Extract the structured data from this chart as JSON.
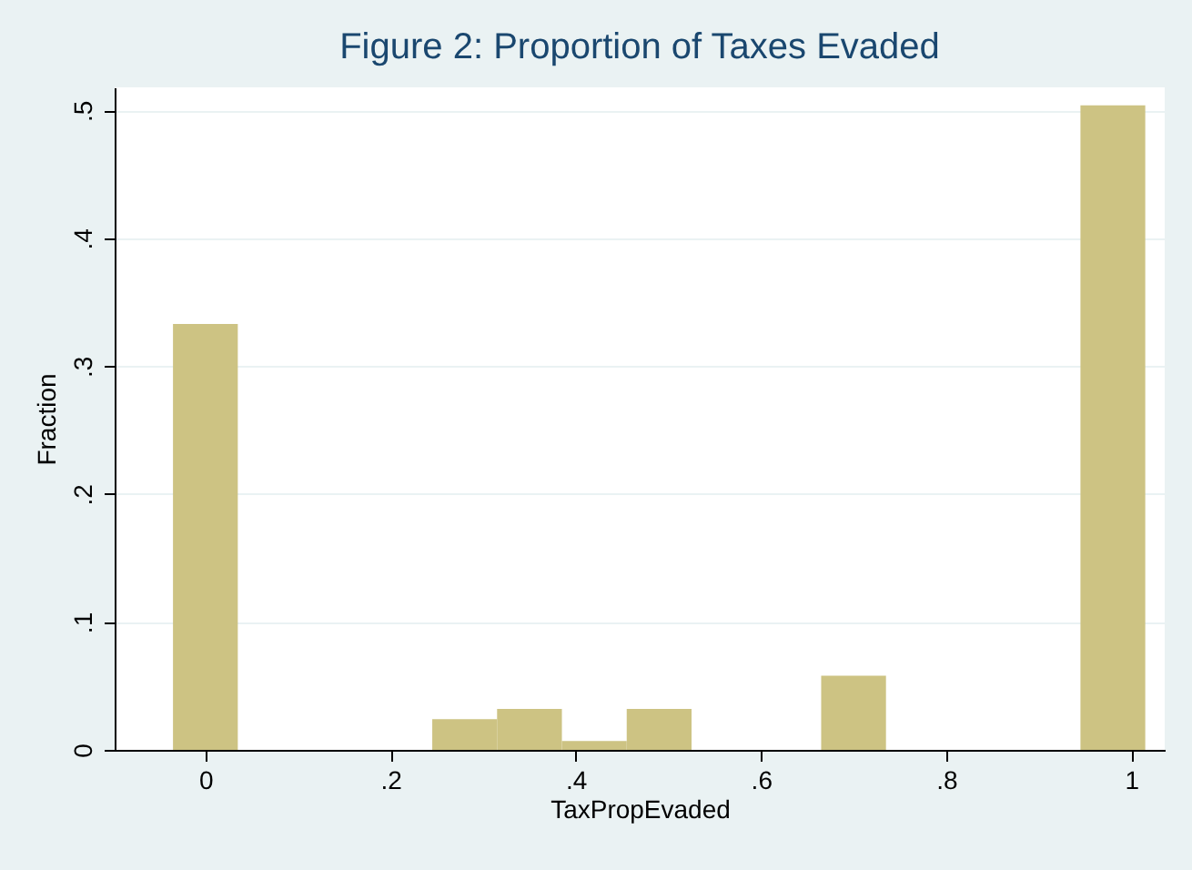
{
  "chart_data": {
    "type": "histogram",
    "title": "Figure 2: Proportion of Taxes Evaded",
    "xlabel": "TaxPropEvaded",
    "ylabel": "Fraction",
    "bins": [
      -0.035,
      0.035,
      0.105,
      0.175,
      0.245,
      0.315,
      0.385,
      0.455,
      0.525,
      0.595,
      0.665,
      0.735,
      0.805,
      0.875,
      0.945,
      1.015
    ],
    "values": [
      0.333,
      0,
      0,
      0,
      0.024,
      0.032,
      0.007,
      0.032,
      0,
      0,
      0.058,
      0,
      0,
      0,
      0.504
    ],
    "color": "#cdc383",
    "xlim": [
      -0.098,
      1.036
    ],
    "ylim": [
      0,
      0.518
    ],
    "xticks": [
      0,
      {
        "value": 0.2,
        "label": ".2"
      },
      {
        "value": 0.4,
        "label": ".4"
      },
      {
        "value": 0.6,
        "label": ".6"
      },
      {
        "value": 0.8,
        "label": ".8"
      },
      1
    ],
    "yticks": [
      0,
      {
        "value": 0.1,
        "label": ".1"
      },
      {
        "value": 0.2,
        "label": ".2"
      },
      {
        "value": 0.3,
        "label": ".3"
      },
      {
        "value": 0.4,
        "label": ".4"
      },
      {
        "value": 0.5,
        "label": ".5"
      }
    ],
    "grid": "y"
  }
}
